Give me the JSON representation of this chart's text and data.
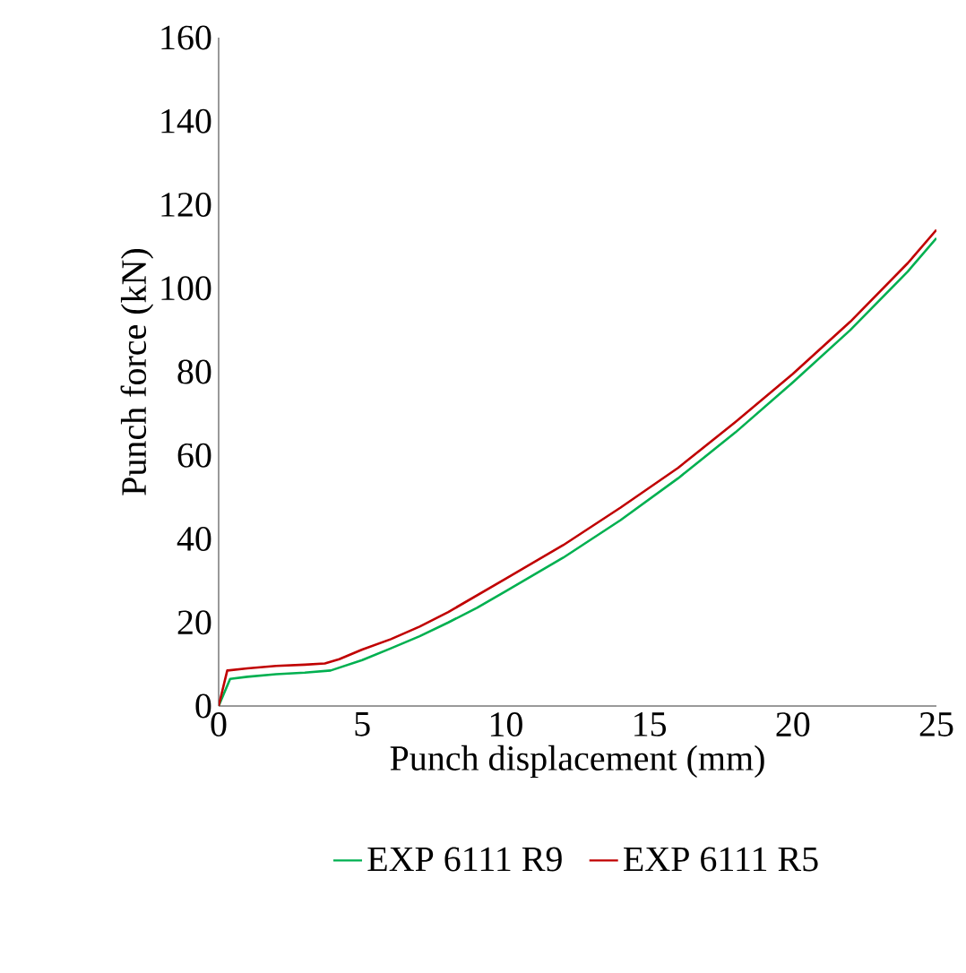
{
  "chart_data": {
    "type": "line",
    "xlabel": "Punch displacement (mm)",
    "ylabel": "Punch force (kN)",
    "xlim": [
      0,
      25
    ],
    "ylim": [
      0,
      160
    ],
    "xticks": [
      0,
      5,
      10,
      15,
      20,
      25
    ],
    "yticks": [
      0,
      20,
      40,
      60,
      80,
      100,
      120,
      140,
      160
    ],
    "grid": false,
    "legend": "bottom",
    "marker": "none",
    "line_style": "solid",
    "series": [
      {
        "name": "EXP 6111 R9",
        "color": "#00b050",
        "x": [
          0,
          0.4,
          1,
          2,
          3,
          3.9,
          5,
          6,
          7,
          8,
          9,
          10,
          12,
          14,
          16,
          18,
          20,
          22,
          24,
          25
        ],
        "values": [
          0,
          6.5,
          7,
          7.6,
          8,
          8.5,
          11,
          13.8,
          16.7,
          20,
          23.5,
          27.5,
          35.5,
          44.5,
          54.5,
          65.5,
          77.5,
          90,
          104,
          112
        ]
      },
      {
        "name": "EXP 6111 R5",
        "color": "#c00000",
        "x": [
          0,
          0.3,
          1,
          2,
          3,
          3.7,
          4.2,
          5,
          6,
          7,
          8,
          9,
          10,
          12,
          14,
          16,
          18,
          20,
          22,
          24,
          25
        ],
        "values": [
          0,
          8.5,
          9,
          9.6,
          9.9,
          10.2,
          11.2,
          13.5,
          16,
          19,
          22.5,
          26.5,
          30.5,
          38.5,
          47.5,
          57,
          68,
          79.5,
          92,
          106,
          114
        ]
      }
    ]
  }
}
